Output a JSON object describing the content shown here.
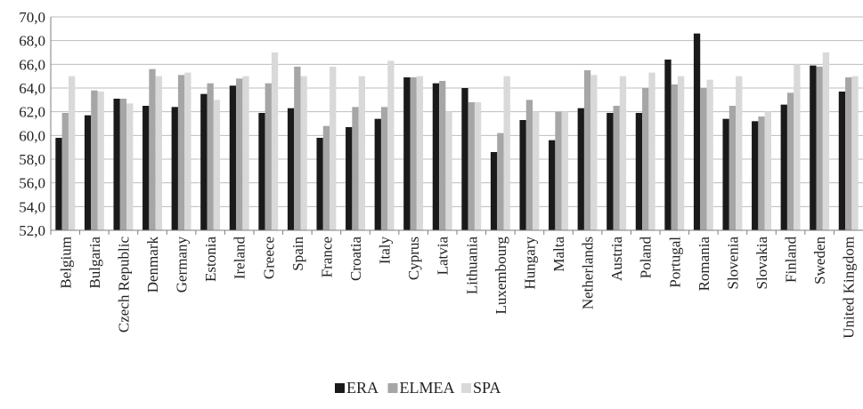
{
  "chart_data": {
    "type": "bar",
    "title": "",
    "xlabel": "",
    "ylabel": "",
    "ylim": [
      52,
      70
    ],
    "ytick_step": 2,
    "ytick_labels": [
      "52,0",
      "54,0",
      "56,0",
      "58,0",
      "60,0",
      "62,0",
      "64,0",
      "66,0",
      "68,0",
      "70,0"
    ],
    "grid": true,
    "legend_position": "bottom",
    "categories": [
      "Belgium",
      "Bulgaria",
      "Czech Republic",
      "Denmark",
      "Germany",
      "Estonia",
      "Ireland",
      "Greece",
      "Spain",
      "France",
      "Croatia",
      "Italy",
      "Cyprus",
      "Latvia",
      "Lithuania",
      "Luxembourg",
      "Hungary",
      "Malta",
      "Netherlands",
      "Austria",
      "Poland",
      "Portugal",
      "Romania",
      "Slovenia",
      "Slovakia",
      "Finland",
      "Sweden",
      "United Kingdom"
    ],
    "series": [
      {
        "name": "ERA",
        "color": "#1a1a1a",
        "values": [
          59.8,
          61.7,
          63.1,
          62.5,
          62.4,
          63.5,
          64.2,
          61.9,
          62.3,
          59.8,
          60.7,
          61.4,
          64.9,
          64.4,
          64.0,
          58.6,
          61.3,
          59.6,
          62.3,
          61.9,
          61.9,
          66.4,
          68.6,
          61.4,
          61.2,
          62.6,
          65.9,
          63.7
        ]
      },
      {
        "name": "ELMEA",
        "color": "#a6a6a6",
        "values": [
          61.9,
          63.8,
          63.1,
          65.6,
          65.1,
          64.4,
          64.8,
          64.4,
          65.8,
          60.8,
          62.4,
          62.4,
          64.9,
          64.6,
          62.8,
          60.2,
          63.0,
          62.0,
          65.5,
          62.5,
          64.0,
          64.3,
          64.0,
          62.5,
          61.6,
          63.6,
          65.8,
          64.9
        ]
      },
      {
        "name": "SPA",
        "color": "#d9d9d9",
        "values": [
          65.0,
          63.7,
          62.7,
          65.0,
          65.3,
          63.0,
          65.0,
          67.0,
          65.0,
          65.8,
          65.0,
          66.3,
          65.0,
          62.0,
          62.8,
          65.0,
          62.0,
          62.0,
          65.1,
          65.0,
          65.3,
          65.0,
          64.7,
          65.0,
          62.0,
          66.0,
          67.0,
          65.0
        ]
      }
    ]
  }
}
